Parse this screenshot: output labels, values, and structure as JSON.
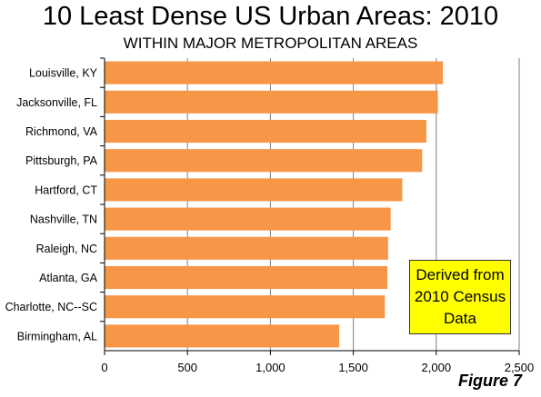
{
  "title": "10 Least Dense US Urban Areas: 2010",
  "subtitle": "WITHIN MAJOR METROPOLITAN AREAS",
  "note_lines": [
    "Derived from",
    "2010 Census",
    "Data"
  ],
  "figure_label": "Figure 7",
  "colors": {
    "bar": "#f79646",
    "grid": "#808080",
    "note_bg": "#ffff00"
  },
  "chart_data": {
    "type": "bar",
    "orientation": "horizontal",
    "title": "10 Least Dense US Urban Areas: 2010",
    "subtitle": "WITHIN MAJOR METROPOLITAN AREAS",
    "categories": [
      "Louisville, KY",
      "Jacksonville, FL",
      "Richmond, VA",
      "Pittsburgh, PA",
      "Hartford, CT",
      "Nashville, TN",
      "Raleigh, NC",
      "Atlanta, GA",
      "Charlotte, NC--SC",
      "Birmingham, AL"
    ],
    "values": [
      2040,
      2010,
      1940,
      1915,
      1795,
      1725,
      1710,
      1705,
      1690,
      1415
    ],
    "xlim": [
      0,
      2500
    ],
    "ticks": [
      0,
      500,
      1000,
      1500,
      2000,
      2500
    ],
    "tick_labels": [
      "0",
      "500",
      "1,000",
      "1,500",
      "2,000",
      "2,500"
    ],
    "xlabel": "",
    "ylabel": "",
    "grid": "vertical",
    "legend": "none"
  }
}
